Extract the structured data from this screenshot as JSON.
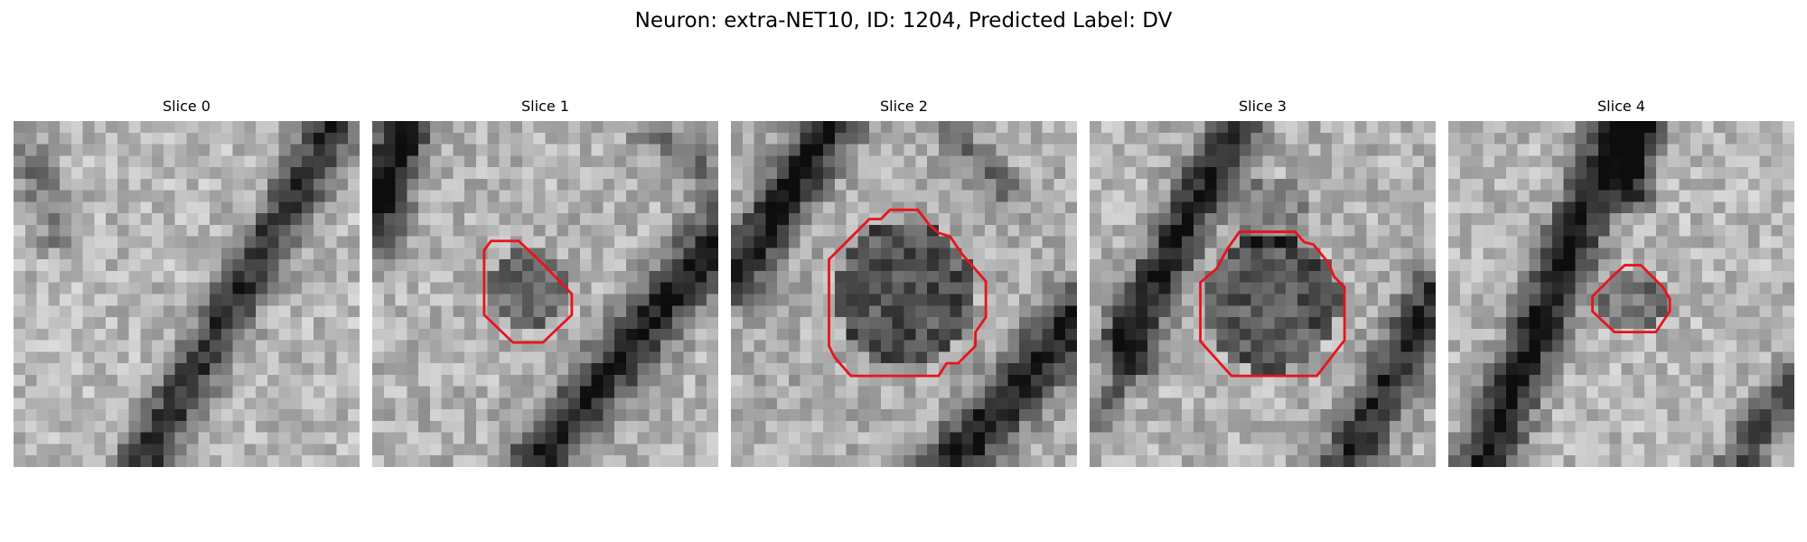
{
  "figure": {
    "title": "Neuron: extra-NET10, ID: 1204, Predicted Label: DV"
  },
  "panels": [
    {
      "title": "Slice 0",
      "roi_outline": false
    },
    {
      "title": "Slice 1",
      "roi_outline": true
    },
    {
      "title": "Slice 2",
      "roi_outline": true
    },
    {
      "title": "Slice 3",
      "roi_outline": true
    },
    {
      "title": "Slice 4",
      "roi_outline": true
    }
  ],
  "colors": {
    "roi_outline": "#e8141a",
    "colormap": "grayscale"
  }
}
